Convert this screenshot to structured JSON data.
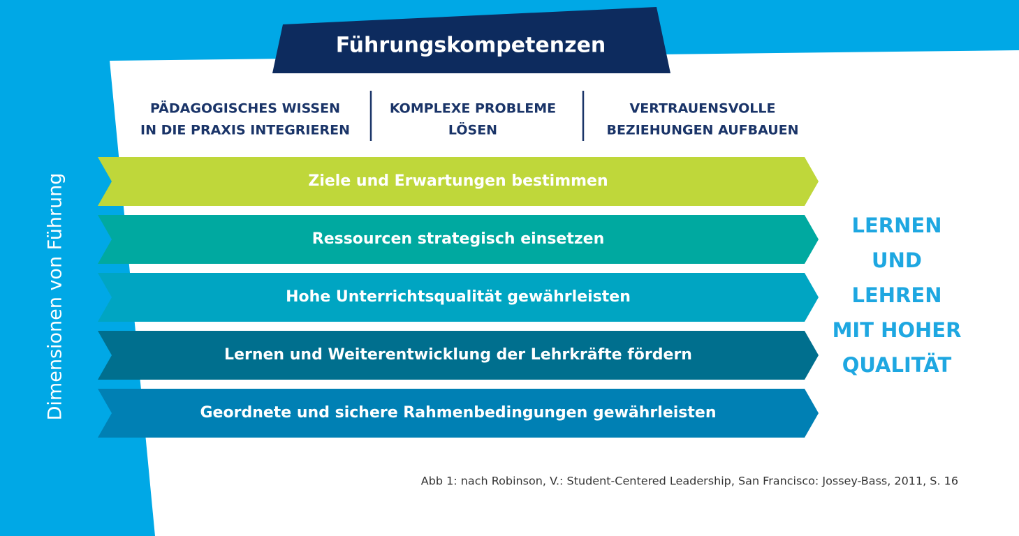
{
  "header": {
    "title": "Führungskompetenzen"
  },
  "competencies": [
    {
      "lines": [
        "PÄDAGOGISCHES WISSEN",
        "IN DIE PRAXIS INTEGRIEREN"
      ]
    },
    {
      "lines": [
        "KOMPLEXE PROBLEME",
        "LÖSEN"
      ]
    },
    {
      "lines": [
        "VERTRAUENSVOLLE",
        "BEZIEHUNGEN AUFBAUEN"
      ]
    }
  ],
  "side_label": "Dimensionen von Führung",
  "dimensions": [
    "Ziele und Erwartungen bestimmen",
    "Ressourcen strategisch einsetzen",
    "Hohe Unterrichtsqualität gewährleisten",
    "Lernen und Weiterentwicklung der Lehrkräfte fördern",
    "Geordnete und sichere Rahmenbedingungen gewährleisten"
  ],
  "outcome": {
    "lines": [
      "LERNEN",
      "UND",
      "LEHREN",
      "MIT HOHER",
      "QUALITÄT"
    ]
  },
  "caption": "Abb 1: nach Robinson, V.: Student-Centered Leadership, San Francisco: Jossey-Bass, 2011, S. 16"
}
